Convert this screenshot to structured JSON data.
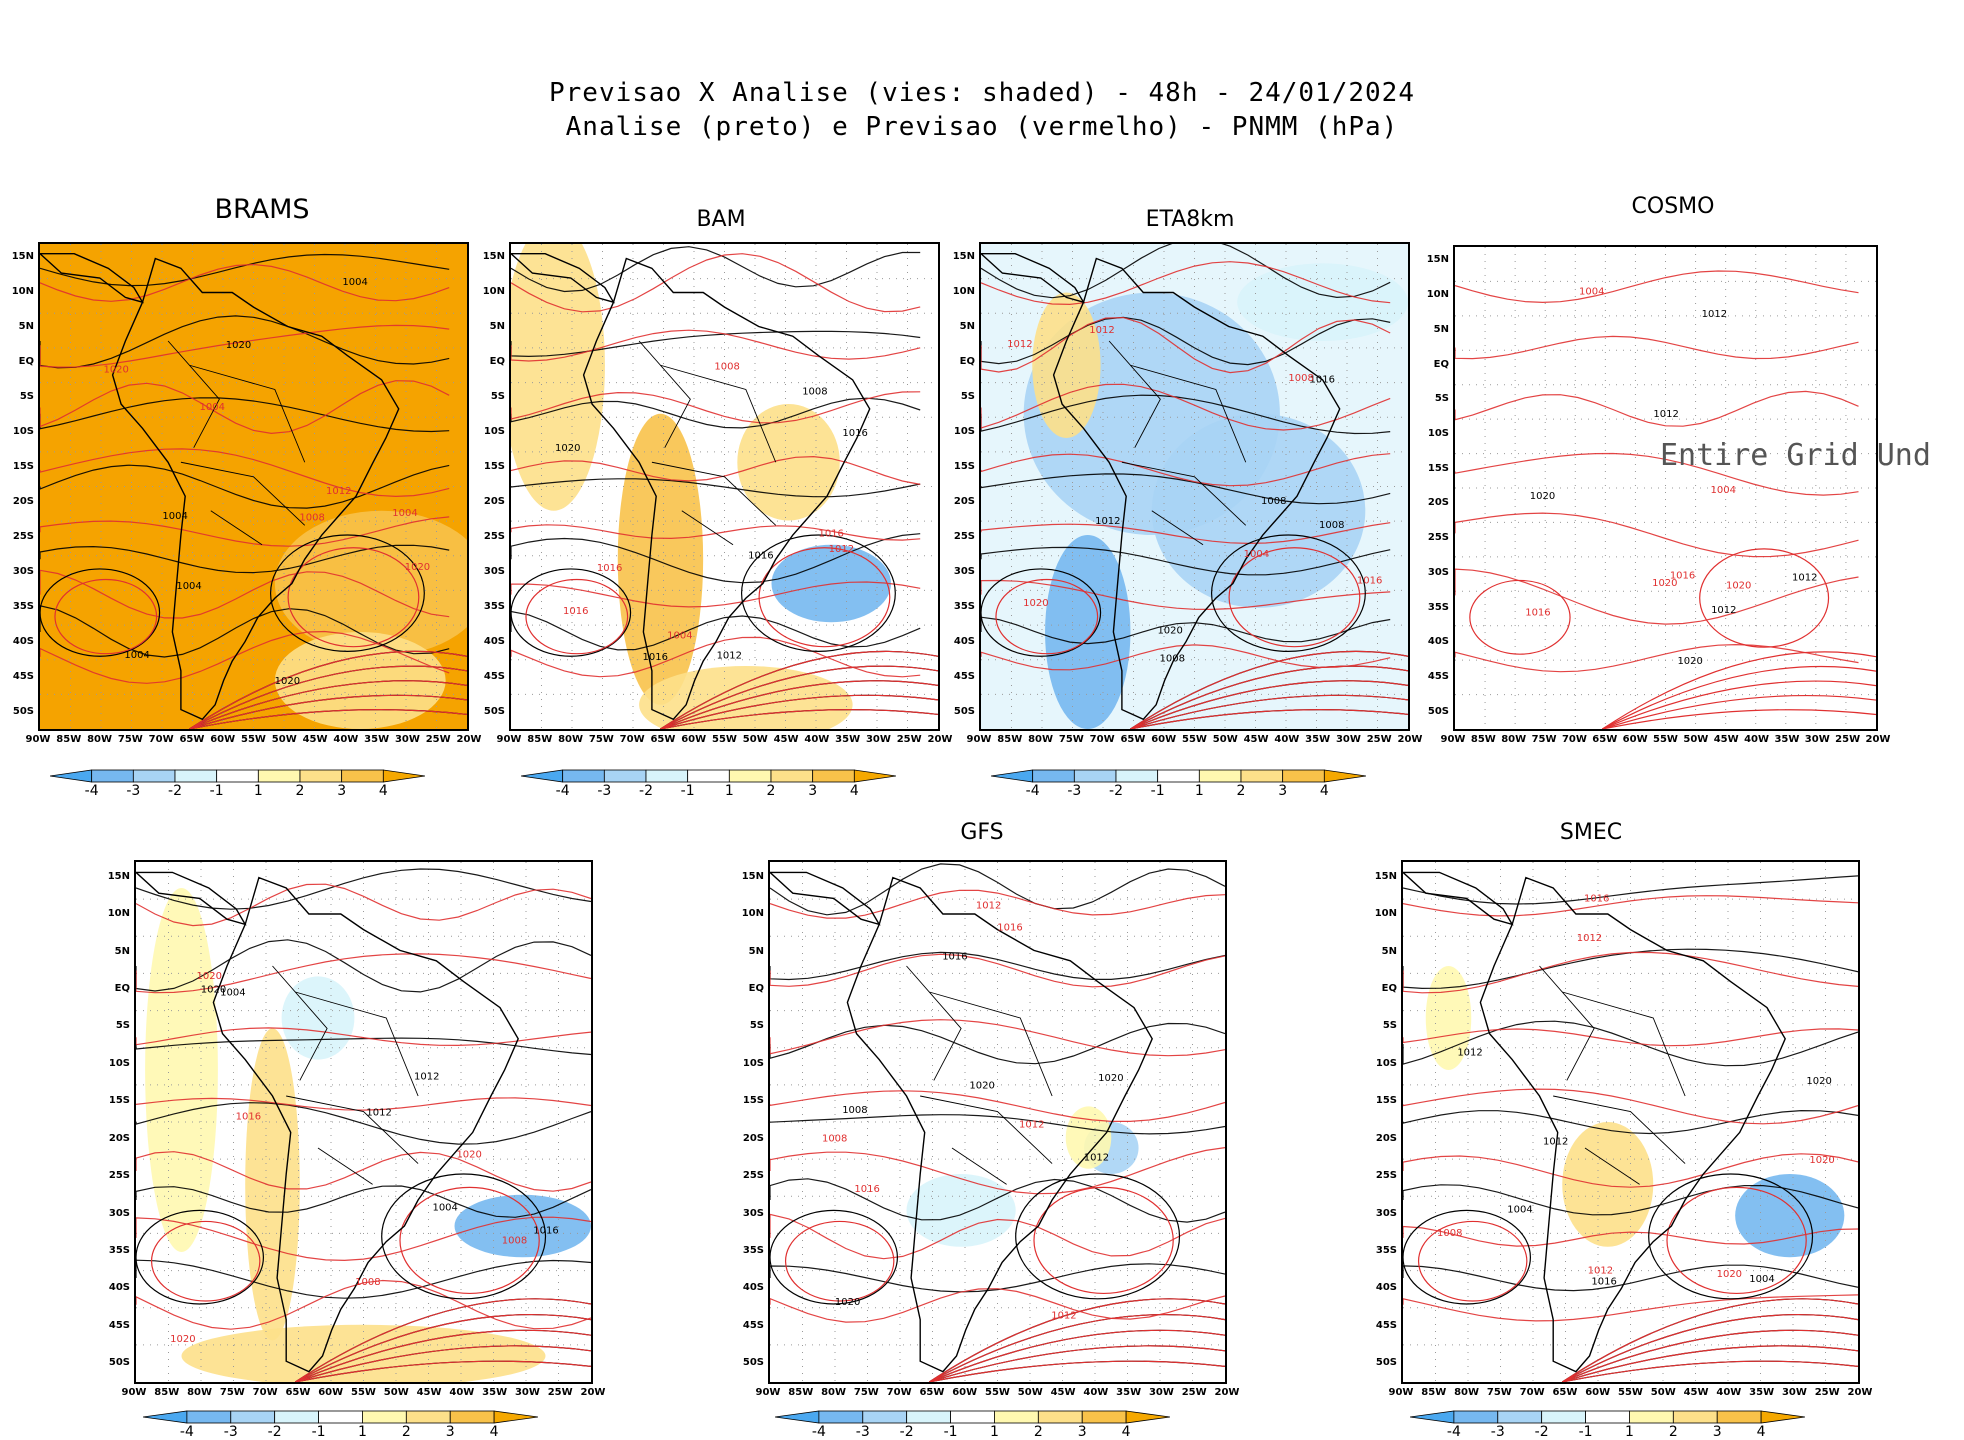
{
  "header": {
    "line1": "Previsao X Analise (vies: shaded) - 48h - 24/01/2024",
    "line2": "Analise (preto) e Previsao (vermelho) - PNMM (hPa)"
  },
  "panels": [
    {
      "id": "brams",
      "title": "BRAMS",
      "shading": "orange-dominant"
    },
    {
      "id": "bam",
      "title": "BAM",
      "shading": "mixed"
    },
    {
      "id": "eta8km",
      "title": "ETA8km",
      "shading": "blue-dominant"
    },
    {
      "id": "cosmo",
      "title": "COSMO",
      "shading": "none",
      "message": "Entire Grid Und"
    },
    {
      "id": "unnamed",
      "title": "",
      "shading": "mixed"
    },
    {
      "id": "gfs",
      "title": "GFS",
      "shading": "light"
    },
    {
      "id": "smec",
      "title": "SMEC",
      "shading": "light"
    }
  ],
  "axes": {
    "lat_labels": [
      "15N",
      "10N",
      "5N",
      "EQ",
      "5S",
      "10S",
      "15S",
      "20S",
      "25S",
      "30S",
      "35S",
      "40S",
      "45S",
      "50S"
    ],
    "lon_labels": [
      "90W",
      "85W",
      "80W",
      "75W",
      "70W",
      "65W",
      "60W",
      "55W",
      "50W",
      "45W",
      "40W",
      "35W",
      "30W",
      "25W",
      "20W"
    ]
  },
  "colorbar": {
    "labels": [
      "-4",
      "-3",
      "-2",
      "-1",
      "1",
      "2",
      "3",
      "4"
    ],
    "colors": [
      "#4aa8f0",
      "#76b8f0",
      "#a8d4f5",
      "#d8f4fb",
      "#ffffff",
      "#fff8b0",
      "#fde08a",
      "#f8c24a",
      "#f5a800"
    ]
  },
  "contour_colors": {
    "analysis": "#000000",
    "forecast": "#e03030"
  },
  "isobar_labels": [
    "1004",
    "1008",
    "1012",
    "1016",
    "1020"
  ]
}
